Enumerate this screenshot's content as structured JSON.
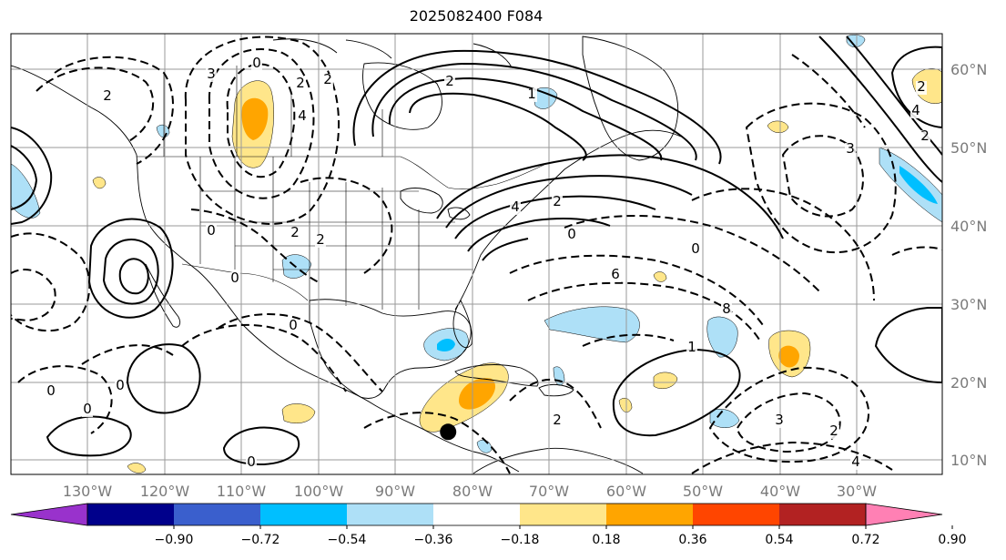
{
  "title": "2025082400 F084",
  "map": {
    "lon_range": [
      -137,
      -16
    ],
    "lat_range": [
      8,
      65
    ],
    "lat_labels": [
      "60°N",
      "50°N",
      "40°N",
      "30°N",
      "20°N",
      "10°N"
    ],
    "lon_labels": [
      "130°W",
      "120°W",
      "110°W",
      "100°W",
      "90°W",
      "80°W",
      "70°W",
      "60°W",
      "50°W",
      "40°W",
      "30°W"
    ],
    "marker": {
      "lon": -80.2,
      "lat": 13.5,
      "color": "#000000"
    },
    "contour_labels": [
      "0",
      "2",
      "3",
      "2",
      "2",
      "4",
      "2",
      "1",
      "2",
      "0",
      "2",
      "2",
      "0",
      "0",
      "0",
      "0",
      "0",
      "0",
      "0",
      "2",
      "1",
      "0",
      "8",
      "6",
      "4",
      "3",
      "2",
      "4",
      "2",
      "4",
      "2",
      "3"
    ]
  },
  "colorbar": {
    "ticks": [
      "−0.90",
      "−0.72",
      "−0.54",
      "−0.36",
      "−0.18",
      "0.18",
      "0.36",
      "0.54",
      "0.72",
      "0.90"
    ],
    "colors": [
      "#9932cc",
      "#00008b",
      "#3a5fcd",
      "#00bfff",
      "#aee0f7",
      "#ffffff",
      "#ffe68a",
      "#ffa500",
      "#ff4500",
      "#b22222",
      "#ff80b4"
    ]
  }
}
